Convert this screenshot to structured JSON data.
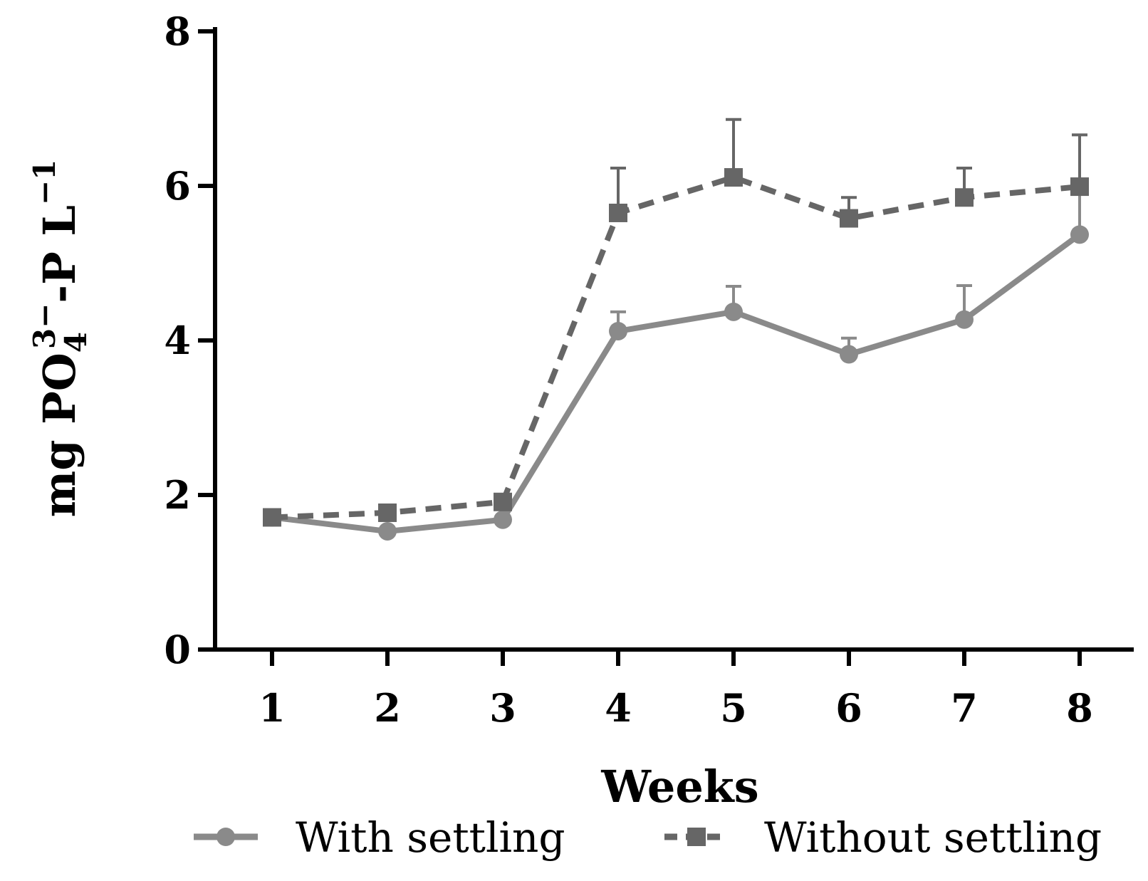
{
  "chart_data": {
    "type": "line",
    "title": "",
    "xlabel": "Weeks",
    "ylabel": {
      "prefix": "mg PO",
      "subscript": "4",
      "superscript": "3−",
      "middle": "-P L",
      "unit_superscript": "−1"
    },
    "x": [
      1,
      2,
      3,
      4,
      5,
      6,
      7,
      8
    ],
    "x_tick_labels": [
      "1",
      "2",
      "3",
      "4",
      "5",
      "6",
      "7",
      "8"
    ],
    "y_ticks": [
      0,
      2,
      4,
      6,
      8
    ],
    "y_tick_labels": [
      "0",
      "2",
      "4",
      "6",
      "8"
    ],
    "ylim": [
      0,
      8
    ],
    "grid": false,
    "legend_position": "bottom",
    "series": [
      {
        "name": "With settling",
        "marker": "circle",
        "line_style": "solid",
        "color": "#8a8a8a",
        "values": [
          1.71,
          1.53,
          1.68,
          4.12,
          4.37,
          3.82,
          4.27,
          5.37
        ],
        "error_upper": [
          0,
          0,
          0,
          0.25,
          0.33,
          0.21,
          0.44,
          0.58
        ]
      },
      {
        "name": "Without settling",
        "marker": "square",
        "line_style": "dashed",
        "color": "#666666",
        "values": [
          1.71,
          1.77,
          1.91,
          5.65,
          6.11,
          5.58,
          5.85,
          5.99
        ],
        "error_upper": [
          0,
          0,
          0,
          0.58,
          0.75,
          0.27,
          0.38,
          0.67
        ]
      }
    ]
  }
}
